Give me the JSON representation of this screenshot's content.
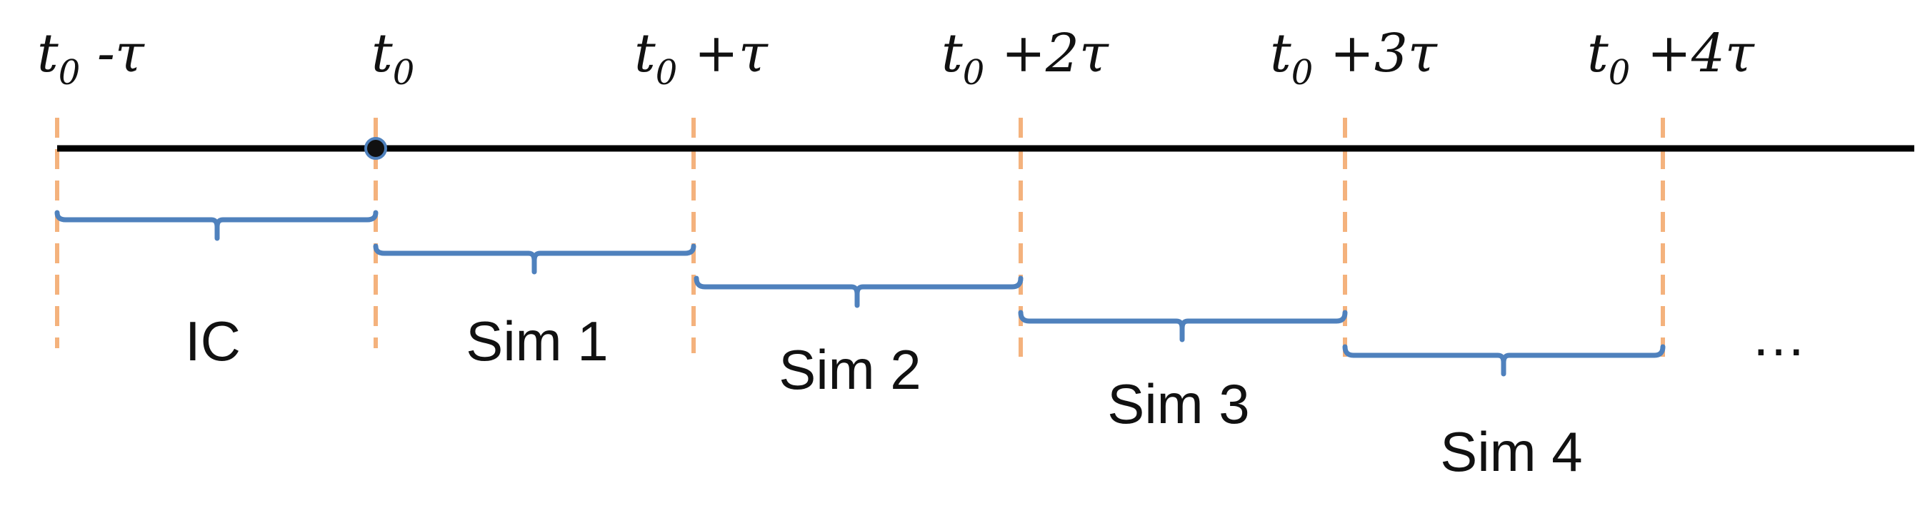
{
  "colors": {
    "axis": "#000000",
    "guide": "#f4b27d",
    "bracket": "#4f81bd",
    "text": "#111111"
  },
  "ticks": [
    {
      "base": "t",
      "sub": "0",
      "suffix": " -τ"
    },
    {
      "base": "t",
      "sub": "0",
      "suffix": ""
    },
    {
      "base": "t",
      "sub": "0",
      "suffix": " +τ"
    },
    {
      "base": "t",
      "sub": "0",
      "suffix": " +2τ"
    },
    {
      "base": "t",
      "sub": "0",
      "suffix": " +3τ"
    },
    {
      "base": "t",
      "sub": "0",
      "suffix": " +4τ"
    }
  ],
  "segments": [
    {
      "label": "IC"
    },
    {
      "label": "Sim 1"
    },
    {
      "label": "Sim 2"
    },
    {
      "label": "Sim 3"
    },
    {
      "label": "Sim 4"
    }
  ],
  "continuation": "…"
}
